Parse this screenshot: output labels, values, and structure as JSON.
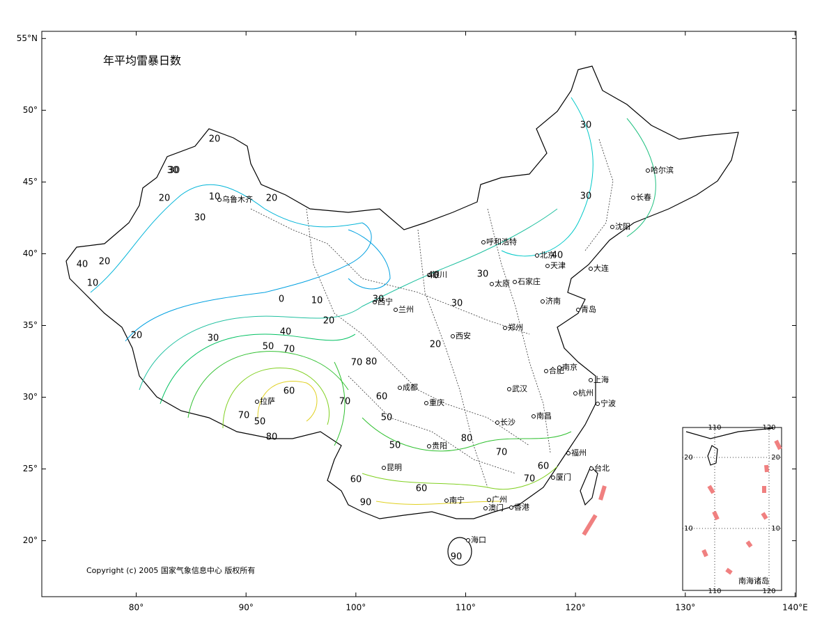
{
  "map": {
    "title": "年平均雷暴日数",
    "copyright": "Copyright (c) 2005 国家气象信息中心 版权所有",
    "xlim": [
      71.4,
      140.1
    ],
    "ylim": [
      16.1,
      55.5
    ],
    "xticks": [
      {
        "value": 80,
        "label": "80°"
      },
      {
        "value": 90,
        "label": "90°"
      },
      {
        "value": 100,
        "label": "100°"
      },
      {
        "value": 110,
        "label": "110°"
      },
      {
        "value": 120,
        "label": "120°"
      },
      {
        "value": 130,
        "label": "130°"
      },
      {
        "value": 140,
        "label": "140°E"
      }
    ],
    "yticks": [
      {
        "value": 20,
        "label": "20°"
      },
      {
        "value": 25,
        "label": "25°"
      },
      {
        "value": 30,
        "label": "30°"
      },
      {
        "value": 35,
        "label": "35°"
      },
      {
        "value": 40,
        "label": "40°"
      },
      {
        "value": 45,
        "label": "45°"
      },
      {
        "value": 50,
        "label": "50°"
      },
      {
        "value": 55,
        "label": "55°N"
      }
    ],
    "cities": [
      "乌鲁木齐",
      "哈尔滨",
      "长春",
      "沈阳",
      "呼和浩特",
      "北京",
      "天津",
      "大连",
      "银川",
      "太原",
      "石家庄",
      "济南",
      "青岛",
      "西宁",
      "兰州",
      "郑州",
      "西安",
      "合肥",
      "南京",
      "上海",
      "成都",
      "武汉",
      "杭州",
      "宁波",
      "拉萨",
      "重庆",
      "长沙",
      "南昌",
      "贵阳",
      "福州",
      "昆明",
      "台北",
      "厦门",
      "南宁",
      "澳门",
      "广州",
      "香港",
      "海口"
    ],
    "contour_labels": [
      "20",
      "30",
      "10",
      "20",
      "30",
      "40",
      "20",
      "10",
      "0",
      "10",
      "20",
      "30",
      "40",
      "50",
      "60",
      "70",
      "80",
      "70",
      "20",
      "30",
      "20",
      "30",
      "40",
      "30",
      "30",
      "20",
      "30",
      "30",
      "40",
      "60",
      "50",
      "70",
      "80",
      "50",
      "60",
      "70",
      "80",
      "60",
      "70",
      "90",
      "60",
      "50",
      "70",
      "90"
    ],
    "inset": {
      "title": "南海诸岛",
      "top_labels": [
        "110",
        "120"
      ],
      "bottom_labels": [
        "110",
        "120"
      ],
      "left_labels": [
        "20",
        "10"
      ],
      "right_labels": [
        "20",
        "10"
      ]
    }
  }
}
